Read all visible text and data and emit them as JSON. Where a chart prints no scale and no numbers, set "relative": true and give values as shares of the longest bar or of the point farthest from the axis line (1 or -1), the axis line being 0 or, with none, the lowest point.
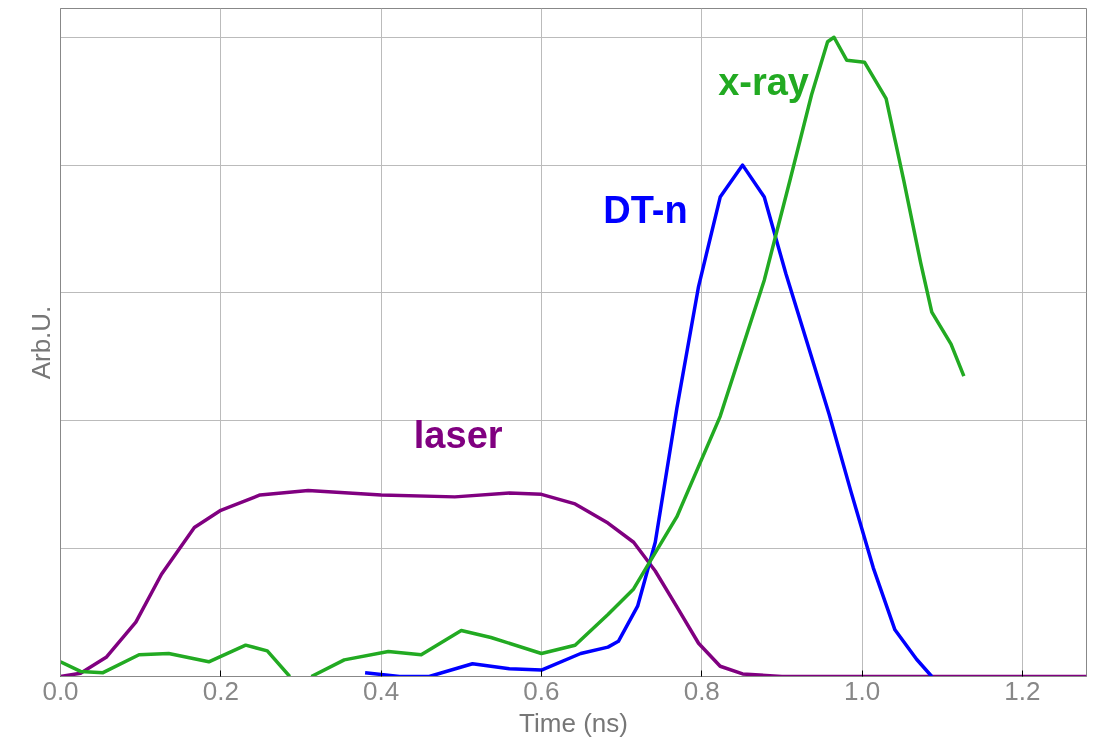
{
  "chart_data": {
    "type": "line",
    "xlabel": "Time (ns)",
    "ylabel": "Arb.U.",
    "relative": true,
    "grid": true,
    "tick_labels": "x",
    "marker": "none",
    "line_style": "solid",
    "xlim": [
      0,
      1.28
    ],
    "xticks": [
      {
        "value": 0,
        "label": "0.0"
      },
      0.2,
      0.4,
      0.6,
      0.8,
      {
        "value": 1,
        "label": "1.0"
      },
      1.2
    ],
    "series": [
      {
        "name": "laser",
        "color": "#800080",
        "x": [
          0,
          0.025,
          0.057,
          0.094,
          0.126,
          0.167,
          0.2,
          0.249,
          0.309,
          0.4,
          0.492,
          0.56,
          0.6,
          0.642,
          0.683,
          0.715,
          0.742,
          0.769,
          0.796,
          0.823,
          0.851,
          0.9,
          1.0,
          1.1,
          1.2,
          1.28
        ],
        "values": [
          0,
          0.005,
          0.03,
          0.085,
          0.16,
          0.233,
          0.26,
          0.284,
          0.291,
          0.284,
          0.281,
          0.287,
          0.285,
          0.27,
          0.24,
          0.21,
          0.165,
          0.109,
          0.052,
          0.016,
          0.004,
          0,
          0,
          0,
          0,
          0
        ]
      },
      {
        "name": "DT-n",
        "color": "#0000ff",
        "x": [
          0.38,
          0.423,
          0.46,
          0.514,
          0.56,
          0.6,
          0.649,
          0.683,
          0.696,
          0.72,
          0.742,
          0.769,
          0.796,
          0.823,
          0.851,
          0.878,
          0.905,
          0.932,
          0.959,
          0.986,
          1.014,
          1.041,
          1.068,
          1.087
        ],
        "values": [
          0.006,
          0,
          0,
          0.02,
          0.012,
          0.01,
          0.036,
          0.046,
          0.055,
          0.11,
          0.21,
          0.42,
          0.61,
          0.75,
          0.8,
          0.75,
          0.63,
          0.52,
          0.41,
          0.29,
          0.17,
          0.073,
          0.027,
          0
        ]
      },
      {
        "name": "x-ray",
        "color": "#22aa22",
        "x": [
          0,
          0.025,
          0.053,
          0.098,
          0.135,
          0.185,
          0.231,
          0.258,
          0.286,
          0.3,
          0.313,
          0.354,
          0.409,
          0.45,
          0.5,
          0.537,
          0.6,
          0.642,
          0.683,
          0.715,
          0.769,
          0.823,
          0.878,
          0.91,
          0.937,
          0.957,
          0.965,
          0.981,
          1.003,
          1.03,
          1.052,
          1.073,
          1.087,
          1.111,
          1.127
        ],
        "values": [
          0.023,
          0.008,
          0.006,
          0.034,
          0.036,
          0.023,
          0.049,
          0.04,
          0,
          null,
          0,
          0.026,
          0.039,
          0.034,
          0.072,
          0.061,
          0.036,
          0.049,
          0.097,
          0.137,
          0.25,
          0.407,
          0.62,
          0.776,
          0.91,
          0.993,
          1.0,
          0.964,
          0.961,
          0.904,
          0.776,
          0.648,
          0.57,
          0.52,
          0.47
        ]
      }
    ]
  }
}
